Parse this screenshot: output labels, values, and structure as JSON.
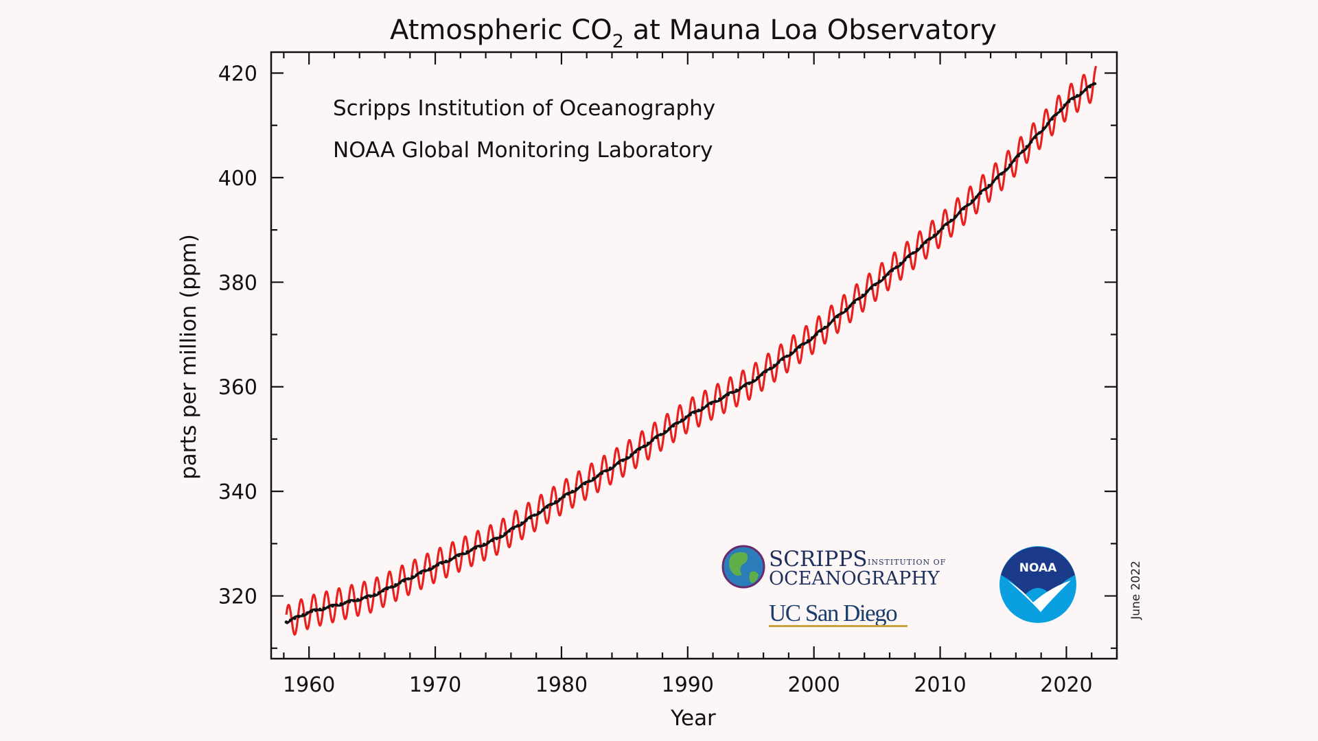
{
  "chart_data": {
    "type": "line",
    "title_main": "Atmospheric CO",
    "title_sub": "2",
    "title_rest": " at Mauna Loa Observatory",
    "xlabel": "Year",
    "ylabel": "parts per million (ppm)",
    "xlim": [
      1957,
      2024
    ],
    "ylim": [
      308,
      424
    ],
    "x_ticks": [
      1960,
      1970,
      1980,
      1990,
      2000,
      2010,
      2020
    ],
    "y_ticks": [
      320,
      340,
      360,
      380,
      400,
      420
    ],
    "grid": false,
    "series": [
      {
        "color": "#e8211f",
        "style": "monthly values with seasonal cycle, amplitude ~3 ppm"
      },
      {
        "color": "#111111",
        "style": "seasonally adjusted trend"
      }
    ],
    "trend_points": {
      "x": [
        1958.2,
        1960,
        1965,
        1970,
        1975,
        1980,
        1985,
        1990,
        1995,
        2000,
        2005,
        2010,
        2015,
        2020,
        2022.4
      ],
      "y": [
        315.0,
        316.9,
        320.0,
        325.7,
        331.1,
        338.7,
        346.1,
        354.4,
        360.8,
        369.6,
        379.8,
        389.9,
        401.0,
        414.2,
        418.3
      ]
    },
    "seasonal_amplitude": 3.1,
    "seasonal_phase_peak_month": 5
  },
  "annotations": {
    "line1": "Scripps Institution of Oceanography",
    "line2": "NOAA Global Monitoring Laboratory",
    "date_stamp": "June 2022"
  },
  "logos": {
    "scripps_line1": "SCRIPPS",
    "scripps_small": "INSTITUTION OF",
    "scripps_line2": "OCEANOGRAPHY",
    "ucsd": "UC San Diego",
    "noaa": "NOAA"
  },
  "colors": {
    "background": "#fdf6f6",
    "monthly": "#e8211f",
    "trend": "#111111",
    "noaa_blue": "#0a9fe0",
    "noaa_navy": "#1b3b8a"
  }
}
